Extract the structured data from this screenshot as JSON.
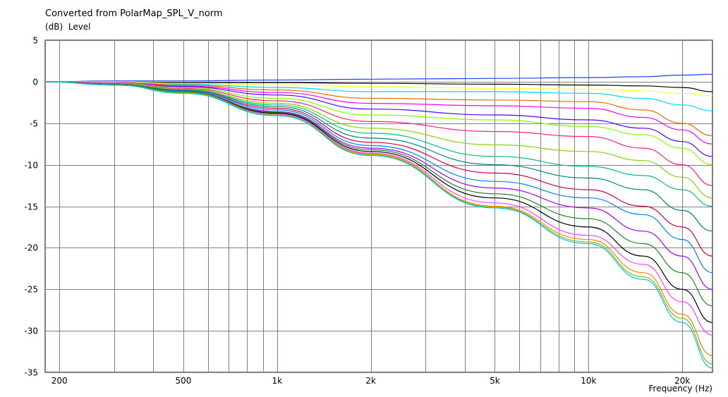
{
  "chart_data": {
    "type": "line",
    "title": "Converted from PolarMap_SPL_V_norm",
    "ylabel": "(dB)  Level",
    "xlabel": "Frequency  (Hz)",
    "x_scale": "log",
    "xlim": [
      180,
      25000
    ],
    "ylim": [
      -35,
      5
    ],
    "grid": true,
    "x_ticks": [
      {
        "value": 200,
        "label": "200"
      },
      {
        "value": 500,
        "label": "500"
      },
      {
        "value": 1000,
        "label": "1k"
      },
      {
        "value": 2000,
        "label": "2k"
      },
      {
        "value": 5000,
        "label": "5k"
      },
      {
        "value": 10000,
        "label": "10k"
      },
      {
        "value": 20000,
        "label": "20k"
      }
    ],
    "y_ticks": [
      5,
      0,
      -5,
      -10,
      -15,
      -20,
      -25,
      -30,
      -35
    ],
    "x": [
      180,
      300,
      500,
      1000,
      2000,
      5000,
      10000,
      15000,
      20000,
      25000
    ],
    "series": [
      {
        "color": "#2040ff",
        "values": [
          0,
          0.1,
          0.1,
          0.2,
          0.3,
          0.4,
          0.5,
          0.6,
          0.8,
          0.9
        ]
      },
      {
        "color": "#000000",
        "values": [
          0,
          0,
          -0.1,
          -0.1,
          -0.2,
          -0.3,
          -0.4,
          -0.5,
          -0.7,
          -1.2
        ]
      },
      {
        "color": "#ffff40",
        "values": [
          0,
          0,
          -0.2,
          -0.4,
          -0.6,
          -0.8,
          -0.9,
          -1.1,
          -1.4,
          -1.7
        ]
      },
      {
        "color": "#00d8ff",
        "values": [
          0,
          -0.1,
          -0.3,
          -0.7,
          -1.2,
          -1.2,
          -1.4,
          -2.0,
          -2.8,
          -3.5
        ]
      },
      {
        "color": "#e07000",
        "values": [
          0,
          -0.1,
          -0.4,
          -1.0,
          -2.0,
          -2.2,
          -2.4,
          -3.4,
          -5.0,
          -6.5
        ]
      },
      {
        "color": "#ff00ff",
        "values": [
          0,
          -0.1,
          -0.5,
          -1.3,
          -2.6,
          -2.9,
          -3.2,
          -4.3,
          -5.8,
          -7.5
        ]
      },
      {
        "color": "#5000ff",
        "values": [
          0,
          -0.2,
          -0.6,
          -1.6,
          -3.3,
          -4.0,
          -4.6,
          -5.6,
          -7.2,
          -9.0
        ]
      },
      {
        "color": "#80ff00",
        "values": [
          0,
          -0.2,
          -0.7,
          -2.0,
          -4.0,
          -4.6,
          -5.4,
          -6.4,
          -8.0,
          -10.0
        ]
      },
      {
        "color": "#ff2080",
        "values": [
          0,
          -0.2,
          -0.8,
          -2.3,
          -4.8,
          -6.0,
          -6.6,
          -8.0,
          -10.0,
          -12.5
        ]
      },
      {
        "color": "#8ad000",
        "values": [
          0,
          -0.2,
          -0.9,
          -2.6,
          -5.6,
          -7.6,
          -8.4,
          -9.5,
          -11.5,
          -14.0
        ]
      },
      {
        "color": "#00c080",
        "values": [
          0,
          -0.3,
          -1.0,
          -2.8,
          -6.2,
          -9.0,
          -10.2,
          -11.3,
          -13.0,
          -15.0
        ]
      },
      {
        "color": "#008080",
        "values": [
          0,
          -0.3,
          -1.0,
          -3.0,
          -6.8,
          -10.0,
          -11.6,
          -13.0,
          -15.5,
          -18.0
        ]
      },
      {
        "color": "#d00040",
        "values": [
          0,
          -0.3,
          -1.1,
          -3.2,
          -7.3,
          -11.0,
          -13.0,
          -15.0,
          -17.5,
          -21.0
        ]
      },
      {
        "color": "#0080ff",
        "values": [
          0,
          -0.3,
          -1.1,
          -3.4,
          -7.7,
          -12.0,
          -14.0,
          -16.0,
          -19.0,
          -23.0
        ]
      },
      {
        "color": "#a000ff",
        "values": [
          0,
          -0.3,
          -1.2,
          -3.6,
          -8.0,
          -12.8,
          -15.2,
          -18.0,
          -21.0,
          -25.0
        ]
      },
      {
        "color": "#208020",
        "values": [
          0,
          -0.3,
          -1.2,
          -3.7,
          -8.2,
          -13.5,
          -16.5,
          -19.5,
          -23.0,
          -27.0
        ]
      },
      {
        "color": "#000000",
        "values": [
          0,
          -0.4,
          -1.3,
          -3.8,
          -8.4,
          -14.0,
          -17.5,
          -21.0,
          -25.0,
          -29.0
        ]
      },
      {
        "color": "#ff40ff",
        "values": [
          0,
          -0.4,
          -1.3,
          -3.9,
          -8.6,
          -14.6,
          -18.5,
          -22.0,
          -26.5,
          -30.5
        ]
      },
      {
        "color": "#ff8000",
        "values": [
          0,
          -0.4,
          -1.3,
          -4.0,
          -8.7,
          -15.0,
          -19.0,
          -23.0,
          -28.0,
          -33.0
        ]
      },
      {
        "color": "#80c000",
        "values": [
          0,
          -0.4,
          -1.3,
          -4.0,
          -8.8,
          -15.1,
          -19.3,
          -23.5,
          -28.5,
          -34.0
        ]
      },
      {
        "color": "#00c0ff",
        "values": [
          0,
          -0.4,
          -1.4,
          -4.1,
          -8.9,
          -15.2,
          -19.5,
          -23.8,
          -29.0,
          -34.5
        ]
      }
    ]
  }
}
